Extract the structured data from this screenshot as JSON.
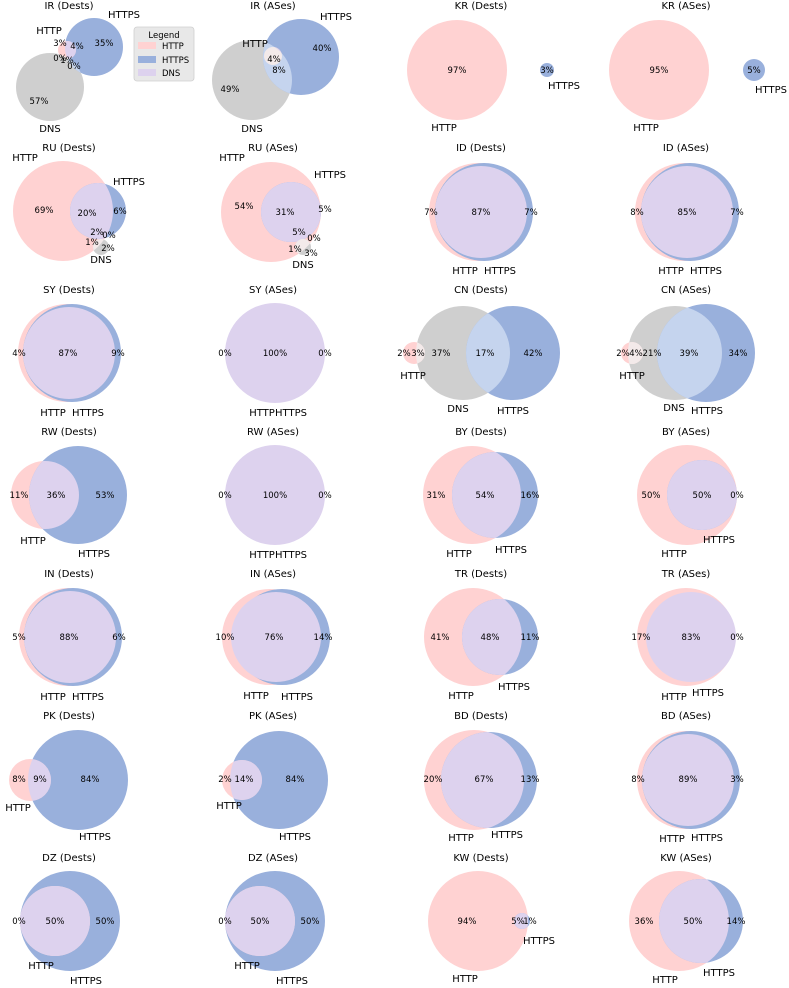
{
  "figure": {
    "legend": {
      "title": "Legend",
      "entries": [
        {
          "label": "HTTP",
          "color": "#ffd2d2"
        },
        {
          "label": "HTTPS",
          "color": "#99b0dc"
        },
        {
          "label": "DNS",
          "color": "#ddd2ee"
        }
      ]
    }
  },
  "chart_data": [
    {
      "type": "venn",
      "title": "IR (Dests)",
      "sets": [
        "HTTP",
        "HTTPS",
        "DNS"
      ],
      "regions": {
        "HTTP only": "3%",
        "HTTPS only": "35%",
        "DNS only": "57%",
        "HTTP∩HTTPS": "4%",
        "HTTP∩DNS": "0%",
        "HTTPS∩DNS": "0%",
        "all three": "1%"
      }
    },
    {
      "type": "venn",
      "title": "IR (ASes)",
      "sets": [
        "HTTP",
        "HTTPS",
        "DNS"
      ],
      "regions": {
        "HTTP only": "",
        "HTTPS only": "40%",
        "DNS only": "49%",
        "HTTP∩HTTPS": "4%",
        "HTTPS∩DNS": "8%"
      }
    },
    {
      "type": "venn",
      "title": "KR (Dests)",
      "sets": [
        "HTTP",
        "HTTPS"
      ],
      "regions": {
        "HTTP only": "97%",
        "HTTPS only": "3%"
      }
    },
    {
      "type": "venn",
      "title": "KR (ASes)",
      "sets": [
        "HTTP",
        "HTTPS"
      ],
      "regions": {
        "HTTP only": "95%",
        "HTTPS only": "5%"
      }
    },
    {
      "type": "venn",
      "title": "RU (Dests)",
      "sets": [
        "HTTP",
        "HTTPS",
        "DNS"
      ],
      "regions": {
        "HTTP only": "69%",
        "HTTP∩HTTPS": "20%",
        "HTTPS only": "6%",
        "all three": "2%",
        "HTTPS∩DNS": "0%",
        "HTTP∩DNS": "1%",
        "DNS only": "2%"
      }
    },
    {
      "type": "venn",
      "title": "RU (ASes)",
      "sets": [
        "HTTP",
        "HTTPS",
        "DNS"
      ],
      "regions": {
        "HTTP only": "54%",
        "HTTP∩HTTPS": "31%",
        "HTTPS only": "5%",
        "all three": "5%",
        "HTTPS∩DNS": "0%",
        "HTTP∩DNS": "1%",
        "DNS only": "3%"
      }
    },
    {
      "type": "venn",
      "title": "ID (Dests)",
      "sets": [
        "HTTP",
        "HTTPS"
      ],
      "regions": {
        "HTTP only": "7%",
        "HTTP∩HTTPS": "87%",
        "HTTPS only": "7%"
      }
    },
    {
      "type": "venn",
      "title": "ID (ASes)",
      "sets": [
        "HTTP",
        "HTTPS"
      ],
      "regions": {
        "HTTP only": "8%",
        "HTTP∩HTTPS": "85%",
        "HTTPS only": "7%"
      }
    },
    {
      "type": "venn",
      "title": "SY (Dests)",
      "sets": [
        "HTTP",
        "HTTPS"
      ],
      "regions": {
        "HTTP only": "4%",
        "HTTP∩HTTPS": "87%",
        "HTTPS only": "9%"
      }
    },
    {
      "type": "venn",
      "title": "SY (ASes)",
      "sets": [
        "HTTP",
        "HTTPS"
      ],
      "regions": {
        "HTTP only": "0%",
        "HTTP∩HTTPS": "100%",
        "HTTPS only": "0%"
      }
    },
    {
      "type": "venn",
      "title": "CN (Dests)",
      "sets": [
        "HTTP",
        "HTTPS",
        "DNS"
      ],
      "regions": {
        "HTTP only": "2%",
        "HTTP∩DNS": "3%",
        "DNS only": "37%",
        "HTTPS∩DNS": "17%",
        "HTTPS only": "42%"
      }
    },
    {
      "type": "venn",
      "title": "CN (ASes)",
      "sets": [
        "HTTP",
        "HTTPS",
        "DNS"
      ],
      "regions": {
        "HTTP only": "2%",
        "HTTP∩DNS": "4%",
        "DNS only": "21%",
        "HTTPS∩DNS": "39%",
        "HTTPS only": "34%"
      }
    },
    {
      "type": "venn",
      "title": "RW (Dests)",
      "sets": [
        "HTTP",
        "HTTPS"
      ],
      "regions": {
        "HTTP only": "11%",
        "HTTP∩HTTPS": "36%",
        "HTTPS only": "53%"
      }
    },
    {
      "type": "venn",
      "title": "RW (ASes)",
      "sets": [
        "HTTP",
        "HTTPS"
      ],
      "regions": {
        "HTTP only": "0%",
        "HTTP∩HTTPS": "100%",
        "HTTPS only": "0%"
      }
    },
    {
      "type": "venn",
      "title": "BY (Dests)",
      "sets": [
        "HTTP",
        "HTTPS"
      ],
      "regions": {
        "HTTP only": "31%",
        "HTTP∩HTTPS": "54%",
        "HTTPS only": "16%"
      }
    },
    {
      "type": "venn",
      "title": "BY (ASes)",
      "sets": [
        "HTTP",
        "HTTPS"
      ],
      "regions": {
        "HTTP only": "50%",
        "HTTP∩HTTPS": "50%",
        "HTTPS only": "0%"
      }
    },
    {
      "type": "venn",
      "title": "IN (Dests)",
      "sets": [
        "HTTP",
        "HTTPS"
      ],
      "regions": {
        "HTTP only": "5%",
        "HTTP∩HTTPS": "88%",
        "HTTPS only": "6%"
      }
    },
    {
      "type": "venn",
      "title": "IN (ASes)",
      "sets": [
        "HTTP",
        "HTTPS"
      ],
      "regions": {
        "HTTP only": "10%",
        "HTTP∩HTTPS": "76%",
        "HTTPS only": "14%"
      }
    },
    {
      "type": "venn",
      "title": "TR (Dests)",
      "sets": [
        "HTTP",
        "HTTPS"
      ],
      "regions": {
        "HTTP only": "41%",
        "HTTP∩HTTPS": "48%",
        "HTTPS only": "11%"
      }
    },
    {
      "type": "venn",
      "title": "TR (ASes)",
      "sets": [
        "HTTP",
        "HTTPS"
      ],
      "regions": {
        "HTTP only": "17%",
        "HTTP∩HTTPS": "83%",
        "HTTPS only": "0%"
      }
    },
    {
      "type": "venn",
      "title": "PK (Dests)",
      "sets": [
        "HTTP",
        "HTTPS"
      ],
      "regions": {
        "HTTP only": "8%",
        "HTTP∩HTTPS": "9%",
        "HTTPS only": "84%"
      }
    },
    {
      "type": "venn",
      "title": "PK (ASes)",
      "sets": [
        "HTTP",
        "HTTPS"
      ],
      "regions": {
        "HTTP only": "2%",
        "HTTP∩HTTPS": "14%",
        "HTTPS only": "84%"
      }
    },
    {
      "type": "venn",
      "title": "BD (Dests)",
      "sets": [
        "HTTP",
        "HTTPS"
      ],
      "regions": {
        "HTTP only": "20%",
        "HTTP∩HTTPS": "67%",
        "HTTPS only": "13%"
      }
    },
    {
      "type": "venn",
      "title": "BD (ASes)",
      "sets": [
        "HTTP",
        "HTTPS"
      ],
      "regions": {
        "HTTP only": "8%",
        "HTTP∩HTTPS": "89%",
        "HTTPS only": "3%"
      }
    },
    {
      "type": "venn",
      "title": "DZ (Dests)",
      "sets": [
        "HTTP",
        "HTTPS"
      ],
      "regions": {
        "HTTP only": "0%",
        "HTTP∩HTTPS": "50%",
        "HTTPS only": "50%"
      }
    },
    {
      "type": "venn",
      "title": "DZ (ASes)",
      "sets": [
        "HTTP",
        "HTTPS"
      ],
      "regions": {
        "HTTP only": "0%",
        "HTTP∩HTTPS": "50%",
        "HTTPS only": "50%"
      }
    },
    {
      "type": "venn",
      "title": "KW (Dests)",
      "sets": [
        "HTTP",
        "HTTPS"
      ],
      "regions": {
        "HTTP only": "94%",
        "HTTP∩HTTPS": "5%",
        "HTTPS only": "1%"
      }
    },
    {
      "type": "venn",
      "title": "KW (ASes)",
      "sets": [
        "HTTP",
        "HTTPS"
      ],
      "regions": {
        "HTTP only": "36%",
        "HTTP∩HTTPS": "50%",
        "HTTPS only": "14%"
      }
    }
  ]
}
